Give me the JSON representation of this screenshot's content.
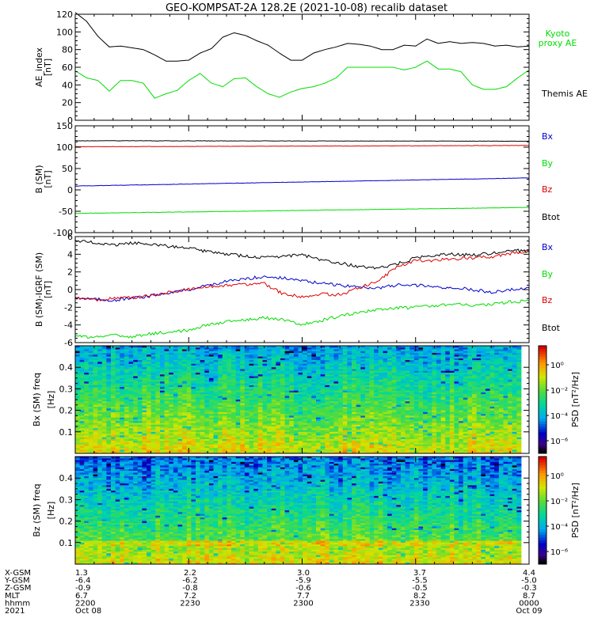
{
  "title": "GEO-KOMPSAT-2A 128.2E (2021-10-08) recalib dataset",
  "time_ticks": [
    "2200",
    "2230",
    "2300",
    "2330",
    "0000"
  ],
  "footer": {
    "labels": [
      "X-GSM",
      "Y-GSM",
      "Z-GSM",
      "MLT",
      "hhmm",
      "2021"
    ],
    "rows": [
      [
        "1.3",
        "2.2",
        "3.0",
        "3.7",
        "4.4"
      ],
      [
        "-6.4",
        "-6.2",
        "-5.9",
        "-5.5",
        "-5.0"
      ],
      [
        "-0.9",
        "-0.8",
        "-0.6",
        "-0.5",
        "-0.3"
      ],
      [
        "6.7",
        "7.2",
        "7.7",
        "8.2",
        "8.7"
      ],
      [
        "2200",
        "2230",
        "2300",
        "2330",
        "0000"
      ],
      [
        "Oct 08",
        "",
        "",
        "",
        "Oct 09"
      ]
    ]
  },
  "colors": {
    "black": "#000000",
    "green": "#00dd00",
    "blue": "#0000cc",
    "red": "#dd0000"
  },
  "chart_data": [
    {
      "type": "line",
      "ylabel": "AE_index [nT]",
      "ylim": [
        0,
        120
      ],
      "yticks": [
        "0",
        "20",
        "40",
        "60",
        "80",
        "100",
        "120"
      ],
      "x": [
        "2200",
        "2203",
        "2206",
        "2209",
        "2212",
        "2215",
        "2218",
        "2221",
        "2224",
        "2227",
        "2230",
        "2233",
        "2236",
        "2239",
        "2242",
        "2245",
        "2248",
        "2251",
        "2254",
        "2257",
        "2300",
        "2303",
        "2306",
        "2309",
        "2312",
        "2315",
        "2318",
        "2321",
        "2324",
        "2327",
        "2330",
        "2333",
        "2336",
        "2339",
        "2342",
        "2345",
        "2348",
        "2351",
        "2354",
        "2357",
        "0000"
      ],
      "series": [
        {
          "name": "Kyoto proxy AE",
          "color": "#00dd00",
          "values": [
            56,
            48,
            45,
            33,
            45,
            45,
            42,
            25,
            30,
            34,
            45,
            53,
            42,
            38,
            47,
            48,
            38,
            30,
            26,
            32,
            36,
            38,
            42,
            48,
            60,
            60,
            60,
            60,
            60,
            57,
            60,
            67,
            58,
            58,
            55,
            40,
            35,
            35,
            38,
            48,
            57
          ]
        },
        {
          "name": "Themis AE",
          "color": "#000000",
          "values": [
            122,
            112,
            95,
            83,
            84,
            82,
            80,
            74,
            67,
            67,
            68,
            76,
            81,
            94,
            99,
            96,
            90,
            85,
            76,
            68,
            68,
            76,
            80,
            83,
            87,
            86,
            84,
            80,
            80,
            85,
            84,
            92,
            87,
            89,
            87,
            88,
            87,
            84,
            85,
            83,
            84
          ]
        }
      ]
    },
    {
      "type": "line",
      "ylabel": "B (SM) [nT]",
      "ylim": [
        -100,
        150
      ],
      "yticks": [
        "-100",
        "-50",
        "0",
        "50",
        "100",
        "150"
      ],
      "x": [
        "2200",
        "0000"
      ],
      "series": [
        {
          "name": "Bx",
          "color": "#0000cc",
          "values": [
            9,
            28
          ]
        },
        {
          "name": "By",
          "color": "#00dd00",
          "values": [
            -55,
            -41
          ]
        },
        {
          "name": "Bz",
          "color": "#dd0000",
          "values": [
            101,
            104
          ]
        },
        {
          "name": "Btot",
          "color": "#000000",
          "values": [
            115,
            114
          ]
        }
      ]
    },
    {
      "type": "line",
      "ylabel": "B (SM)-IGRF (SM) [nT]",
      "ylim": [
        -6,
        6
      ],
      "yticks": [
        "-6",
        "-4",
        "-2",
        "0",
        "2",
        "4",
        "6"
      ],
      "x": [
        "2200",
        "2205",
        "2210",
        "2215",
        "2220",
        "2225",
        "2230",
        "2235",
        "2240",
        "2245",
        "2250",
        "2255",
        "2300",
        "2305",
        "2310",
        "2315",
        "2320",
        "2325",
        "2330",
        "2335",
        "2340",
        "2345",
        "2350",
        "2355",
        "0000"
      ],
      "series": [
        {
          "name": "Bx",
          "color": "#0000cc",
          "values": [
            -0.9,
            -1.1,
            -1.2,
            -1.0,
            -0.7,
            -0.3,
            0.0,
            0.5,
            0.9,
            1.2,
            1.5,
            1.3,
            1.0,
            0.7,
            0.5,
            0.3,
            0.2,
            0.5,
            0.5,
            0.3,
            0.2,
            0.0,
            -0.3,
            0.0,
            0.2
          ]
        },
        {
          "name": "By",
          "color": "#00dd00",
          "values": [
            -5.3,
            -5.4,
            -5.2,
            -5.3,
            -5.0,
            -4.8,
            -4.6,
            -4.0,
            -3.6,
            -3.4,
            -3.2,
            -3.4,
            -3.9,
            -3.5,
            -3.0,
            -2.6,
            -2.3,
            -2.1,
            -2.0,
            -1.8,
            -1.6,
            -1.8,
            -1.7,
            -1.4,
            -1.3
          ]
        },
        {
          "name": "Bz",
          "color": "#dd0000",
          "values": [
            -0.9,
            -1.2,
            -1.0,
            -0.9,
            -0.7,
            -0.3,
            0.0,
            0.3,
            0.5,
            0.6,
            0.7,
            -0.5,
            -0.8,
            -0.5,
            -0.6,
            0.2,
            1.0,
            2.5,
            3.3,
            3.3,
            3.5,
            3.6,
            3.7,
            4.1,
            4.4
          ]
        },
        {
          "name": "Btot",
          "color": "#000000",
          "values": [
            5.6,
            5.3,
            5.0,
            5.3,
            5.1,
            4.9,
            4.7,
            4.3,
            4.0,
            3.8,
            3.6,
            3.8,
            3.9,
            3.4,
            3.0,
            2.6,
            2.4,
            2.9,
            3.6,
            3.9,
            4.0,
            3.9,
            4.1,
            4.5,
            4.3
          ]
        }
      ]
    },
    {
      "type": "heatmap",
      "ylabel": "Bx (SM) freq [Hz]",
      "ylim": [
        0,
        0.5
      ],
      "yticks": [
        "0.1",
        "0.2",
        "0.3",
        "0.4"
      ],
      "colorbar": {
        "label": "PSD [nT²/Hz]",
        "ticks": [
          "10⁰",
          "10⁻²",
          "10⁻⁴",
          "10⁻⁶"
        ]
      },
      "log_psd_range": [
        -7,
        1.5
      ]
    },
    {
      "type": "heatmap",
      "ylabel": "Bz (SM) freq [Hz]",
      "ylim": [
        0,
        0.5
      ],
      "yticks": [
        "0.1",
        "0.2",
        "0.3",
        "0.4"
      ],
      "colorbar": {
        "label": "PSD [nT²/Hz]",
        "ticks": [
          "10⁰",
          "10⁻²",
          "10⁻⁴",
          "10⁻⁶"
        ]
      },
      "log_psd_range": [
        -7,
        1.5
      ]
    }
  ]
}
